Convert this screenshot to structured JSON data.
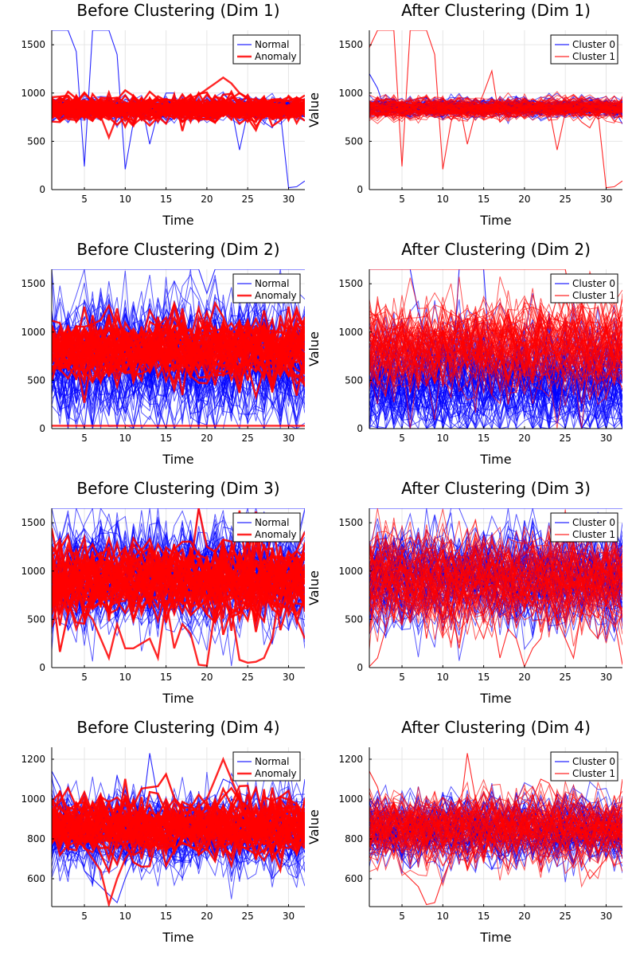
{
  "figure": {
    "colors": {
      "normal": "#0000ff",
      "anomaly": "#ff0000",
      "cluster0": "#0000ff",
      "cluster1": "#ff0000",
      "grid": "#e6e6e6"
    }
  },
  "chart_data": [
    {
      "type": "line",
      "title": "Before Clustering (Dim 1)",
      "xlabel": "Time",
      "ylabel": "",
      "xlim": [
        1,
        32
      ],
      "ylim": [
        0,
        1650
      ],
      "xticks": [
        5,
        10,
        15,
        20,
        25,
        30
      ],
      "yticks": [
        0,
        500,
        1000,
        1500
      ],
      "grid": true,
      "legend_position": "top-right",
      "series": [
        {
          "name": "Normal",
          "color": "#0000ff",
          "emphasis": "thin",
          "band_center": 840,
          "band_spread": 80,
          "values": [
            1650,
            1650,
            1650,
            1430,
            240,
            1650,
            1650,
            1650,
            1400,
            210,
            700,
            900,
            470,
            800,
            1000,
            1000,
            700,
            780,
            800,
            950,
            850,
            880,
            850,
            410,
            800,
            800,
            700,
            640,
            800,
            20,
            30,
            90
          ]
        },
        {
          "name": "Anomaly",
          "color": "#ff0000",
          "emphasis": "thick",
          "band_center": 850,
          "band_spread": 100,
          "values": [
            840,
            860,
            820,
            900,
            780,
            850,
            760,
            540,
            760,
            820,
            820,
            860,
            900,
            920,
            940,
            900,
            900,
            950,
            980,
            1040,
            1100,
            1160,
            1100,
            1000,
            950,
            880,
            860,
            870,
            840,
            850,
            830,
            820
          ]
        }
      ]
    },
    {
      "type": "line",
      "title": "After Clustering (Dim 1)",
      "xlabel": "Time",
      "ylabel": "Value",
      "xlim": [
        1,
        32
      ],
      "ylim": [
        0,
        1650
      ],
      "xticks": [
        5,
        10,
        15,
        20,
        25,
        30
      ],
      "yticks": [
        0,
        500,
        1000,
        1500
      ],
      "grid": true,
      "legend_position": "top-right",
      "series": [
        {
          "name": "Cluster 0",
          "color": "#0000ff",
          "emphasis": "thin",
          "band_center": 840,
          "band_spread": 70,
          "values": [
            1200,
            1050,
            800,
            860,
            900,
            830,
            850,
            760,
            840,
            800,
            860,
            820,
            840,
            830,
            860,
            850,
            820,
            840,
            860,
            840,
            830,
            860,
            820,
            850,
            830,
            840,
            860,
            840,
            820,
            850,
            830,
            680
          ]
        },
        {
          "name": "Cluster 1",
          "color": "#ff0000",
          "emphasis": "thin",
          "band_center": 840,
          "band_spread": 80,
          "values": [
            1470,
            1650,
            1650,
            1650,
            240,
            1650,
            1650,
            1650,
            1400,
            210,
            700,
            900,
            470,
            800,
            1000,
            1230,
            700,
            780,
            800,
            950,
            850,
            880,
            850,
            410,
            800,
            800,
            700,
            640,
            800,
            20,
            30,
            90
          ]
        }
      ]
    },
    {
      "type": "line",
      "title": "Before Clustering (Dim 2)",
      "xlabel": "Time",
      "ylabel": "",
      "xlim": [
        1,
        32
      ],
      "ylim": [
        0,
        1650
      ],
      "xticks": [
        5,
        10,
        15,
        20,
        25,
        30
      ],
      "yticks": [
        0,
        500,
        1000,
        1500
      ],
      "grid": true,
      "legend_position": "top-right",
      "series": [
        {
          "name": "Normal",
          "color": "#0000ff",
          "emphasis": "thin",
          "band_center": 700,
          "band_spread": 500,
          "values": [
            1650,
            1650,
            1650,
            1650,
            1650,
            1650,
            1650,
            1650,
            1650,
            1650,
            1650,
            1650,
            1650,
            1650,
            1650,
            1650,
            1650,
            1650,
            1650,
            1400,
            1650,
            1650,
            1650,
            1650,
            1650,
            1650,
            1650,
            1650,
            1650,
            1650,
            1650,
            1650
          ]
        },
        {
          "name": "Anomaly",
          "color": "#ff0000",
          "emphasis": "thick",
          "band_center": 850,
          "band_spread": 250,
          "values": [
            30,
            30,
            30,
            30,
            30,
            30,
            30,
            30,
            30,
            30,
            30,
            30,
            30,
            30,
            30,
            30,
            30,
            30,
            30,
            30,
            30,
            30,
            30,
            30,
            30,
            30,
            30,
            30,
            30,
            30,
            30,
            30
          ]
        }
      ]
    },
    {
      "type": "line",
      "title": "After Clustering (Dim 2)",
      "xlabel": "Time",
      "ylabel": "Value",
      "xlim": [
        1,
        32
      ],
      "ylim": [
        0,
        1650
      ],
      "xticks": [
        5,
        10,
        15,
        20,
        25,
        30
      ],
      "yticks": [
        0,
        500,
        1000,
        1500
      ],
      "grid": true,
      "legend_position": "top-right",
      "series": [
        {
          "name": "Cluster 0",
          "color": "#0000ff",
          "emphasis": "thin",
          "band_center": 500,
          "band_spread": 450,
          "values": [
            1650,
            1650,
            1650,
            1650,
            1650,
            1650,
            1200,
            900,
            700,
            500,
            300,
            1650,
            1650,
            1650,
            1650,
            400,
            300,
            500,
            600,
            700,
            500,
            400,
            300,
            500,
            600,
            700,
            500,
            400,
            300,
            500,
            600,
            700
          ]
        },
        {
          "name": "Cluster 1",
          "color": "#ff0000",
          "emphasis": "thin",
          "band_center": 850,
          "band_spread": 350,
          "values": [
            1650,
            1650,
            1650,
            1650,
            1650,
            1650,
            1650,
            1650,
            1650,
            1650,
            1650,
            1650,
            1650,
            1650,
            1650,
            1650,
            1650,
            1650,
            1650,
            1650,
            1650,
            1650,
            1650,
            1650,
            1650,
            1200,
            1000,
            900,
            800,
            900,
            1000,
            1100
          ]
        }
      ]
    },
    {
      "type": "line",
      "title": "Before Clustering (Dim 3)",
      "xlabel": "Time",
      "ylabel": "",
      "xlim": [
        1,
        32
      ],
      "ylim": [
        0,
        1650
      ],
      "xticks": [
        5,
        10,
        15,
        20,
        25,
        30
      ],
      "yticks": [
        0,
        500,
        1000,
        1500
      ],
      "grid": true,
      "legend_position": "top-right",
      "series": [
        {
          "name": "Normal",
          "color": "#0000ff",
          "emphasis": "thin",
          "band_center": 950,
          "band_spread": 420,
          "values": [
            1650,
            1650,
            1650,
            1650,
            1650,
            1650,
            1650,
            1650,
            1650,
            1650,
            1650,
            1650,
            1650,
            1650,
            1650,
            1650,
            1650,
            1650,
            1650,
            1650,
            1650,
            1650,
            1650,
            1650,
            1650,
            1650,
            1650,
            1650,
            1650,
            1650,
            1650,
            1650
          ]
        },
        {
          "name": "Anomaly",
          "color": "#ff0000",
          "emphasis": "thick",
          "band_center": 900,
          "band_spread": 300,
          "values": [
            900,
            800,
            700,
            400,
            600,
            500,
            300,
            100,
            450,
            200,
            200,
            250,
            300,
            100,
            700,
            200,
            450,
            350,
            30,
            20,
            600,
            700,
            600,
            80,
            50,
            60,
            100,
            300,
            800,
            700,
            500,
            300
          ]
        }
      ]
    },
    {
      "type": "line",
      "title": "After Clustering (Dim 3)",
      "xlabel": "Time",
      "ylabel": "Value",
      "xlim": [
        1,
        32
      ],
      "ylim": [
        0,
        1650
      ],
      "xticks": [
        5,
        10,
        15,
        20,
        25,
        30
      ],
      "yticks": [
        0,
        500,
        1000,
        1500
      ],
      "grid": true,
      "legend_position": "top-right",
      "series": [
        {
          "name": "Cluster 0",
          "color": "#0000ff",
          "emphasis": "thin",
          "band_center": 950,
          "band_spread": 380,
          "values": [
            1650,
            1650,
            1650,
            1650,
            1650,
            1650,
            1650,
            1650,
            1650,
            1650,
            1650,
            1650,
            1650,
            1650,
            1650,
            1650,
            1650,
            1650,
            1650,
            1650,
            1650,
            1650,
            1650,
            1650,
            1650,
            1650,
            1650,
            1650,
            1650,
            1650,
            1650,
            1650
          ]
        },
        {
          "name": "Cluster 1",
          "color": "#ff0000",
          "emphasis": "thin",
          "band_center": 900,
          "band_spread": 360,
          "values": [
            10,
            100,
            400,
            700,
            600,
            500,
            900,
            300,
            800,
            400,
            600,
            200,
            700,
            500,
            300,
            600,
            100,
            400,
            300,
            10,
            200,
            300,
            700,
            500,
            300,
            100,
            600,
            400,
            300,
            700,
            500,
            30
          ]
        }
      ]
    },
    {
      "type": "line",
      "title": "Before Clustering (Dim 4)",
      "xlabel": "Time",
      "ylabel": "",
      "xlim": [
        1,
        32
      ],
      "ylim": [
        460,
        1260
      ],
      "xticks": [
        5,
        10,
        15,
        20,
        25,
        30
      ],
      "yticks": [
        600,
        800,
        1000,
        1200
      ],
      "grid": true,
      "legend_position": "top-right",
      "series": [
        {
          "name": "Normal",
          "color": "#0000ff",
          "emphasis": "thin",
          "band_center": 840,
          "band_spread": 150,
          "values": [
            1140,
            1060,
            900,
            780,
            640,
            600,
            560,
            520,
            480,
            600,
            700,
            900,
            1230,
            1000,
            900,
            800,
            780,
            800,
            820,
            900,
            1000,
            1100,
            1080,
            1000,
            900,
            800,
            700,
            600,
            650,
            700,
            800,
            1100
          ]
        },
        {
          "name": "Anomaly",
          "color": "#ff0000",
          "emphasis": "thick",
          "band_center": 860,
          "band_spread": 110,
          "values": [
            840,
            860,
            820,
            800,
            760,
            700,
            640,
            470,
            600,
            700,
            760,
            800,
            820,
            840,
            860,
            900,
            920,
            940,
            960,
            1000,
            1100,
            1200,
            1100,
            1000,
            950,
            900,
            880,
            860,
            840,
            850,
            830,
            820
          ]
        }
      ]
    },
    {
      "type": "line",
      "title": "After Clustering (Dim 4)",
      "xlabel": "Time",
      "ylabel": "Value",
      "xlim": [
        1,
        32
      ],
      "ylim": [
        460,
        1260
      ],
      "xticks": [
        5,
        10,
        15,
        20,
        25,
        30
      ],
      "yticks": [
        600,
        800,
        1000,
        1200
      ],
      "grid": true,
      "legend_position": "top-right",
      "series": [
        {
          "name": "Cluster 0",
          "color": "#0000ff",
          "emphasis": "thin",
          "band_center": 840,
          "band_spread": 120,
          "values": [
            1000,
            950,
            900,
            800,
            700,
            650,
            700,
            750,
            800,
            850,
            900,
            950,
            1000,
            900,
            850,
            800,
            780,
            820,
            860,
            900,
            940,
            900,
            860,
            820,
            800,
            780,
            760,
            800,
            840,
            880,
            900,
            700
          ]
        },
        {
          "name": "Cluster 1",
          "color": "#ff0000",
          "emphasis": "thin",
          "band_center": 850,
          "band_spread": 130,
          "values": [
            1140,
            1060,
            900,
            780,
            640,
            600,
            560,
            470,
            480,
            600,
            700,
            900,
            1230,
            1000,
            900,
            800,
            780,
            800,
            820,
            900,
            1000,
            1100,
            1080,
            1000,
            900,
            800,
            700,
            600,
            650,
            700,
            800,
            1100
          ]
        }
      ]
    }
  ]
}
